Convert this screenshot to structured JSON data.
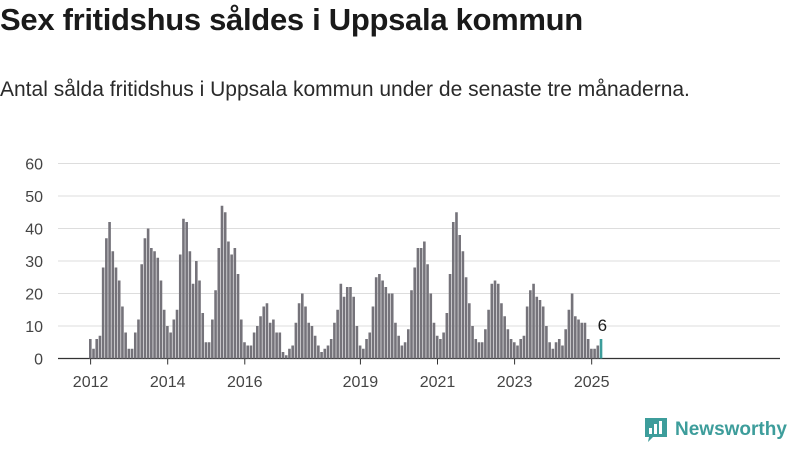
{
  "header": {
    "title": "Sex fritidshus såldes i Uppsala kommun",
    "subtitle": "Antal sålda fritidshus i Uppsala kommun under de senaste tre månaderna."
  },
  "footer": {
    "brand": "Newsworthy"
  },
  "colors": {
    "bar": "#75737a",
    "highlight": "#3d9d9b",
    "grid": "#dddddd",
    "axis": "#444444"
  },
  "chart_data": {
    "type": "bar",
    "title": "",
    "xlabel": "",
    "ylabel": "",
    "ylim": [
      0,
      60
    ],
    "yticks": [
      0,
      10,
      20,
      30,
      40,
      50,
      60
    ],
    "xtick_labels": [
      "2012",
      "2014",
      "2016",
      "2019",
      "2021",
      "2023",
      "2025"
    ],
    "grid": true,
    "first_month": "2012-01",
    "values": [
      6,
      3,
      6,
      7,
      28,
      37,
      42,
      33,
      28,
      24,
      16,
      8,
      3,
      3,
      8,
      12,
      29,
      37,
      40,
      34,
      33,
      31,
      24,
      15,
      10,
      8,
      12,
      15,
      32,
      43,
      42,
      33,
      23,
      30,
      24,
      14,
      5,
      5,
      12,
      21,
      34,
      47,
      45,
      36,
      32,
      34,
      26,
      12,
      5,
      4,
      4,
      8,
      10,
      13,
      16,
      17,
      11,
      12,
      8,
      8,
      2,
      1,
      3,
      4,
      11,
      17,
      20,
      16,
      11,
      10,
      7,
      4,
      2,
      3,
      4,
      6,
      11,
      15,
      23,
      19,
      22,
      22,
      19,
      10,
      4,
      3,
      6,
      8,
      16,
      25,
      26,
      24,
      22,
      20,
      20,
      11,
      7,
      4,
      5,
      9,
      21,
      28,
      34,
      34,
      36,
      29,
      20,
      11,
      7,
      6,
      8,
      14,
      26,
      42,
      45,
      38,
      33,
      25,
      17,
      10,
      6,
      5,
      5,
      9,
      15,
      23,
      24,
      23,
      17,
      13,
      9,
      6,
      5,
      4,
      6,
      7,
      16,
      21,
      23,
      19,
      18,
      16,
      10,
      5,
      3,
      5,
      6,
      4,
      9,
      15,
      20,
      13,
      12,
      11,
      11,
      6,
      3,
      3,
      4,
      6
    ],
    "highlight": {
      "month": "2025-04",
      "value": 6,
      "label": "6"
    }
  }
}
